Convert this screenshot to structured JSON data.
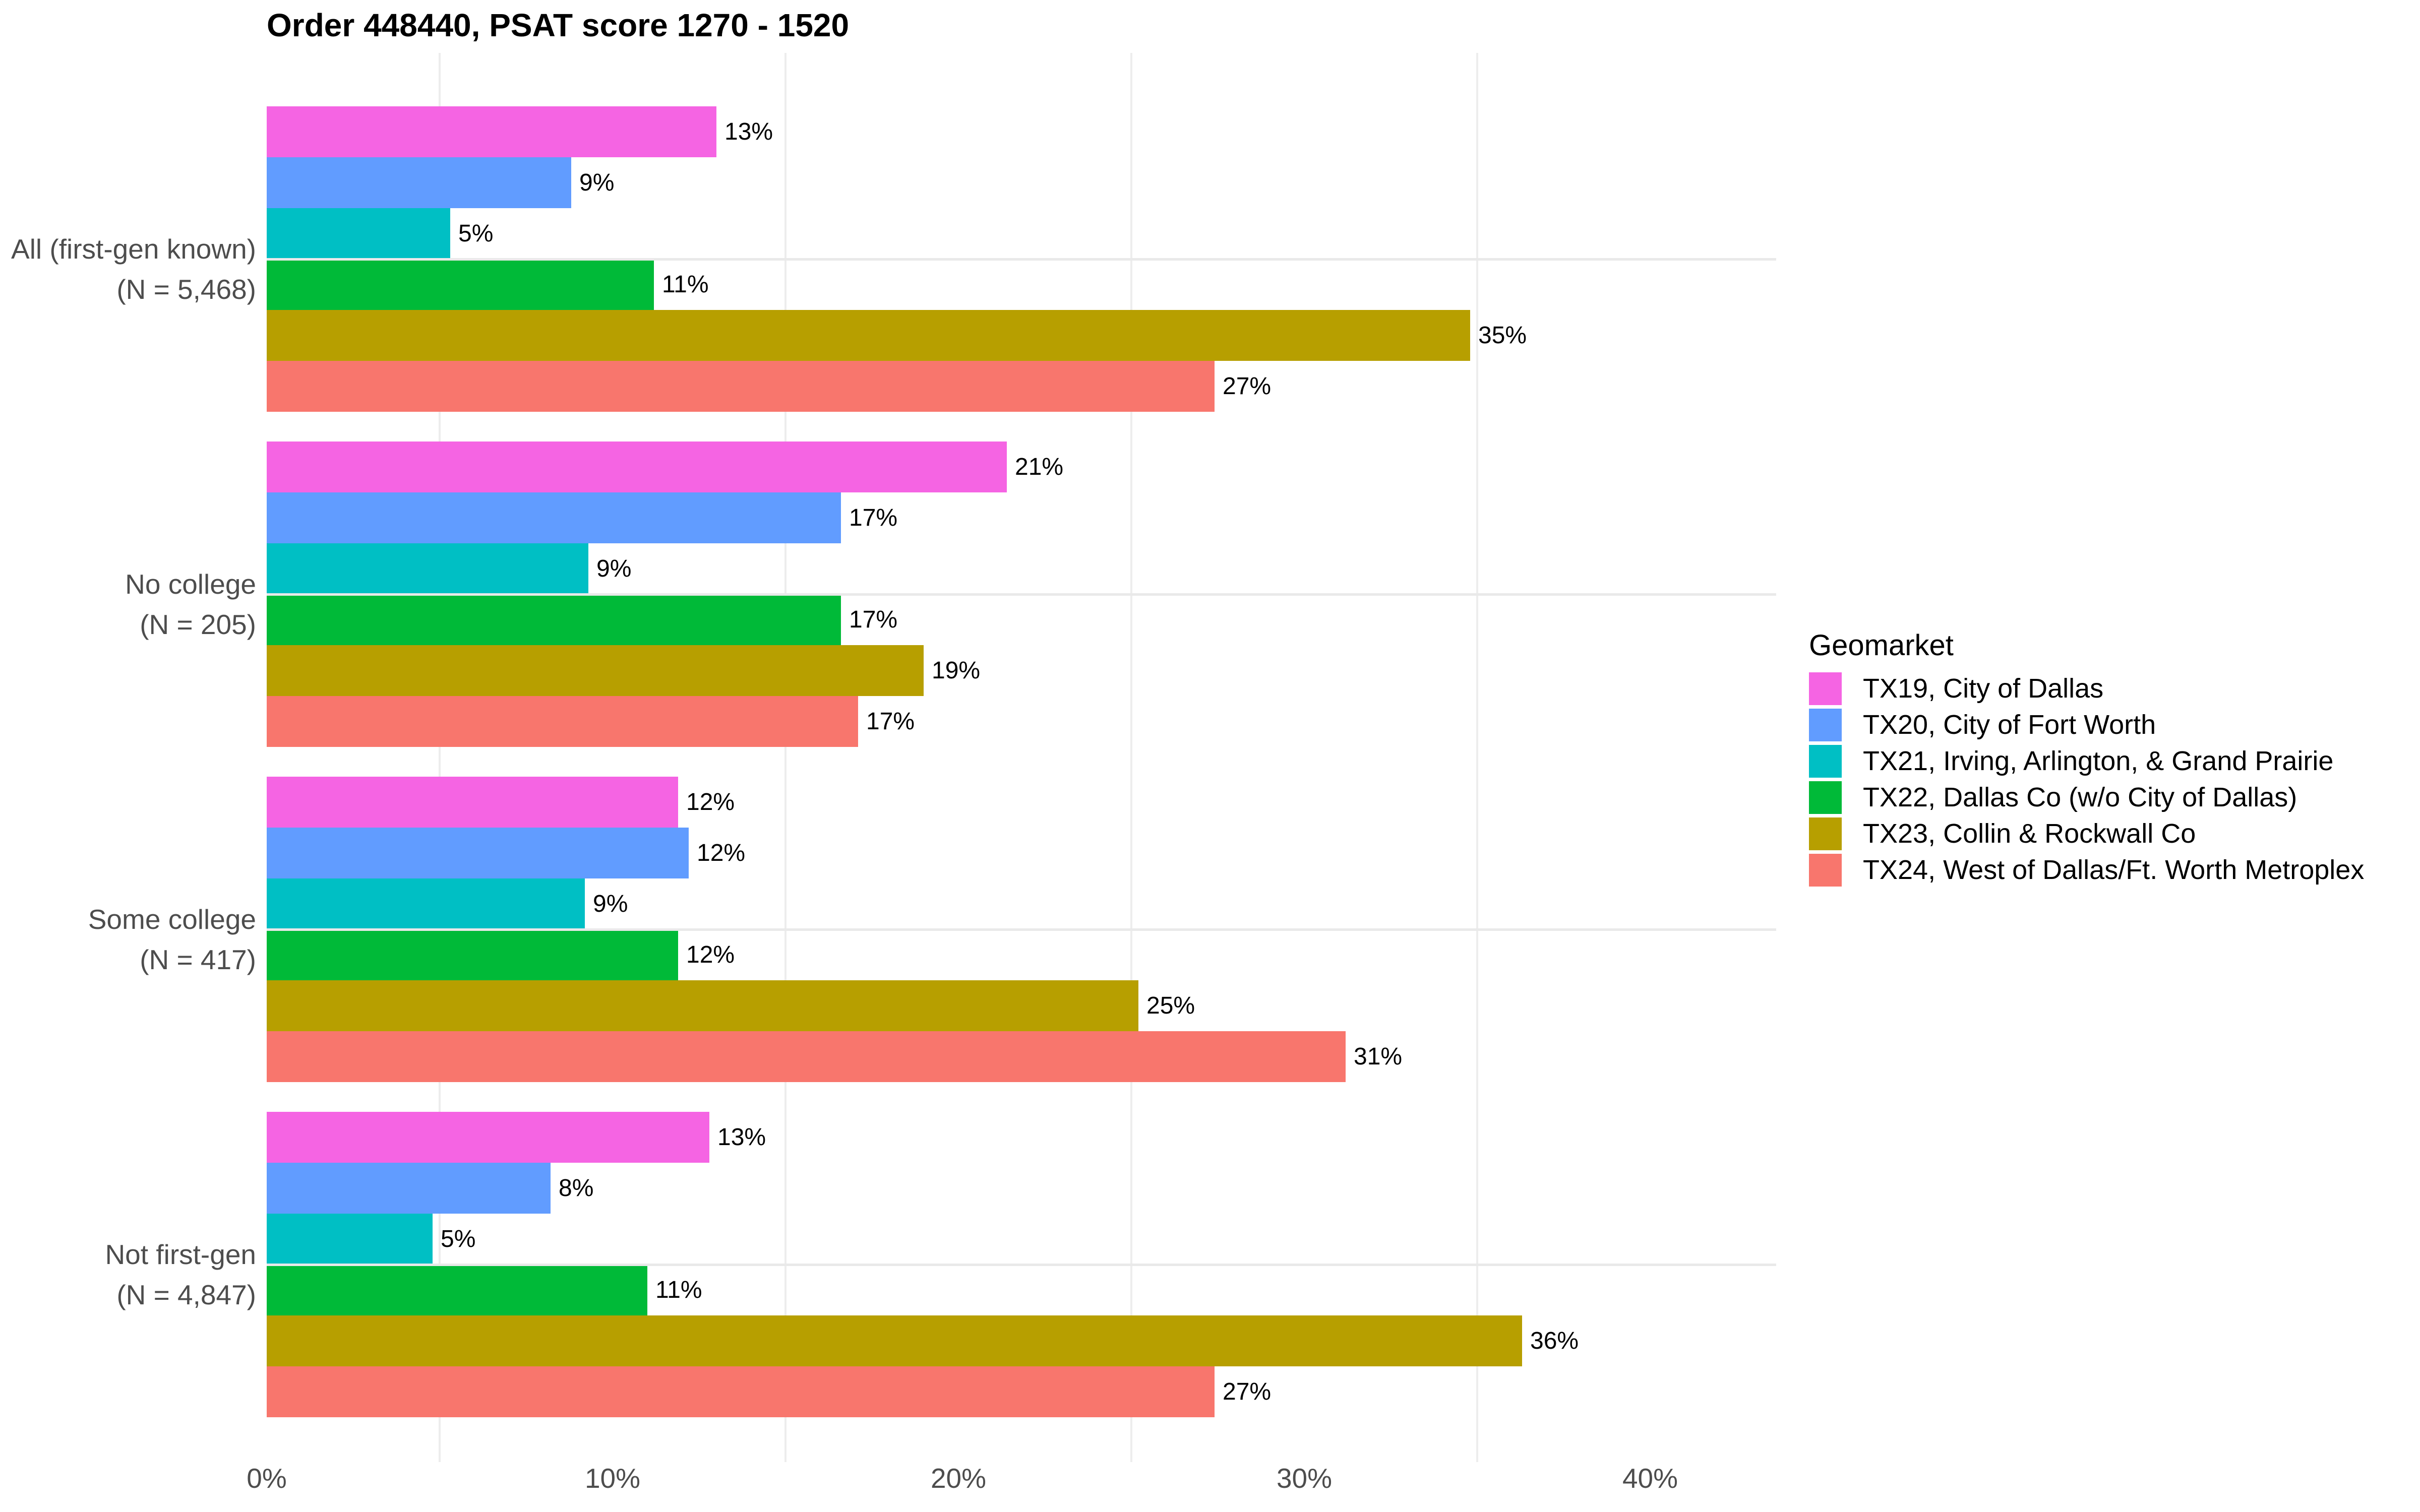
{
  "title": "Order 448440, PSAT score 1270 - 1520",
  "legend": {
    "title": "Geomarket",
    "position": "right"
  },
  "chart_data": {
    "type": "bar",
    "orientation": "horizontal",
    "title": "Order 448440, PSAT score 1270 - 1520",
    "xlabel": "",
    "ylabel": "",
    "xlim": [
      0,
      43.6
    ],
    "x_tick_labels": [
      "0%",
      "10%",
      "20%",
      "30%",
      "40%"
    ],
    "x_tick_values": [
      0,
      10,
      20,
      30,
      40
    ],
    "minor_gridlines_x": [
      5,
      15,
      25,
      35
    ],
    "grid": true,
    "legend_title": "Geomarket",
    "legend_position": "right",
    "categories": [
      {
        "lines": [
          "All (first-gen known)",
          "(N = 5,468)"
        ]
      },
      {
        "lines": [
          "No college",
          "(N = 205)"
        ]
      },
      {
        "lines": [
          "Some college",
          "(N = 417)"
        ]
      },
      {
        "lines": [
          "Not first-gen",
          "(N = 4,847)"
        ]
      }
    ],
    "series": [
      {
        "name": "TX19, City of Dallas",
        "color": "#F564E3",
        "values": [
          13.0,
          21.4,
          11.9,
          12.8
        ],
        "labels": [
          "13%",
          "21%",
          "12%",
          "13%"
        ]
      },
      {
        "name": "TX20, City of Fort Worth",
        "color": "#619CFF",
        "values": [
          8.8,
          16.6,
          12.2,
          8.2
        ],
        "labels": [
          "9%",
          "17%",
          "12%",
          "8%"
        ]
      },
      {
        "name": "TX21, Irving, Arlington, & Grand Prairie",
        "color": "#00BFC4",
        "values": [
          5.3,
          9.3,
          9.2,
          4.8
        ],
        "labels": [
          "5%",
          "9%",
          "9%",
          "5%"
        ]
      },
      {
        "name": "TX22, Dallas Co (w/o City of Dallas)",
        "color": "#00BA38",
        "values": [
          11.2,
          16.6,
          11.9,
          11.0
        ],
        "labels": [
          "11%",
          "17%",
          "12%",
          "11%"
        ]
      },
      {
        "name": "TX23, Collin & Rockwall Co",
        "color": "#B79F00",
        "values": [
          34.8,
          19.0,
          25.2,
          36.3
        ],
        "labels": [
          "35%",
          "19%",
          "25%",
          "36%"
        ]
      },
      {
        "name": "TX24, West of Dallas/Ft. Worth Metroplex",
        "color": "#F8766D",
        "values": [
          27.4,
          17.1,
          31.2,
          27.4
        ],
        "labels": [
          "27%",
          "17%",
          "31%",
          "27%"
        ]
      }
    ],
    "colors": {
      "axis_text": "#4d4d4d",
      "data_label_text": "#000000",
      "grid_minor": "#ededed",
      "grid_major_y": "#e9e9e9",
      "background": "#ffffff"
    }
  }
}
